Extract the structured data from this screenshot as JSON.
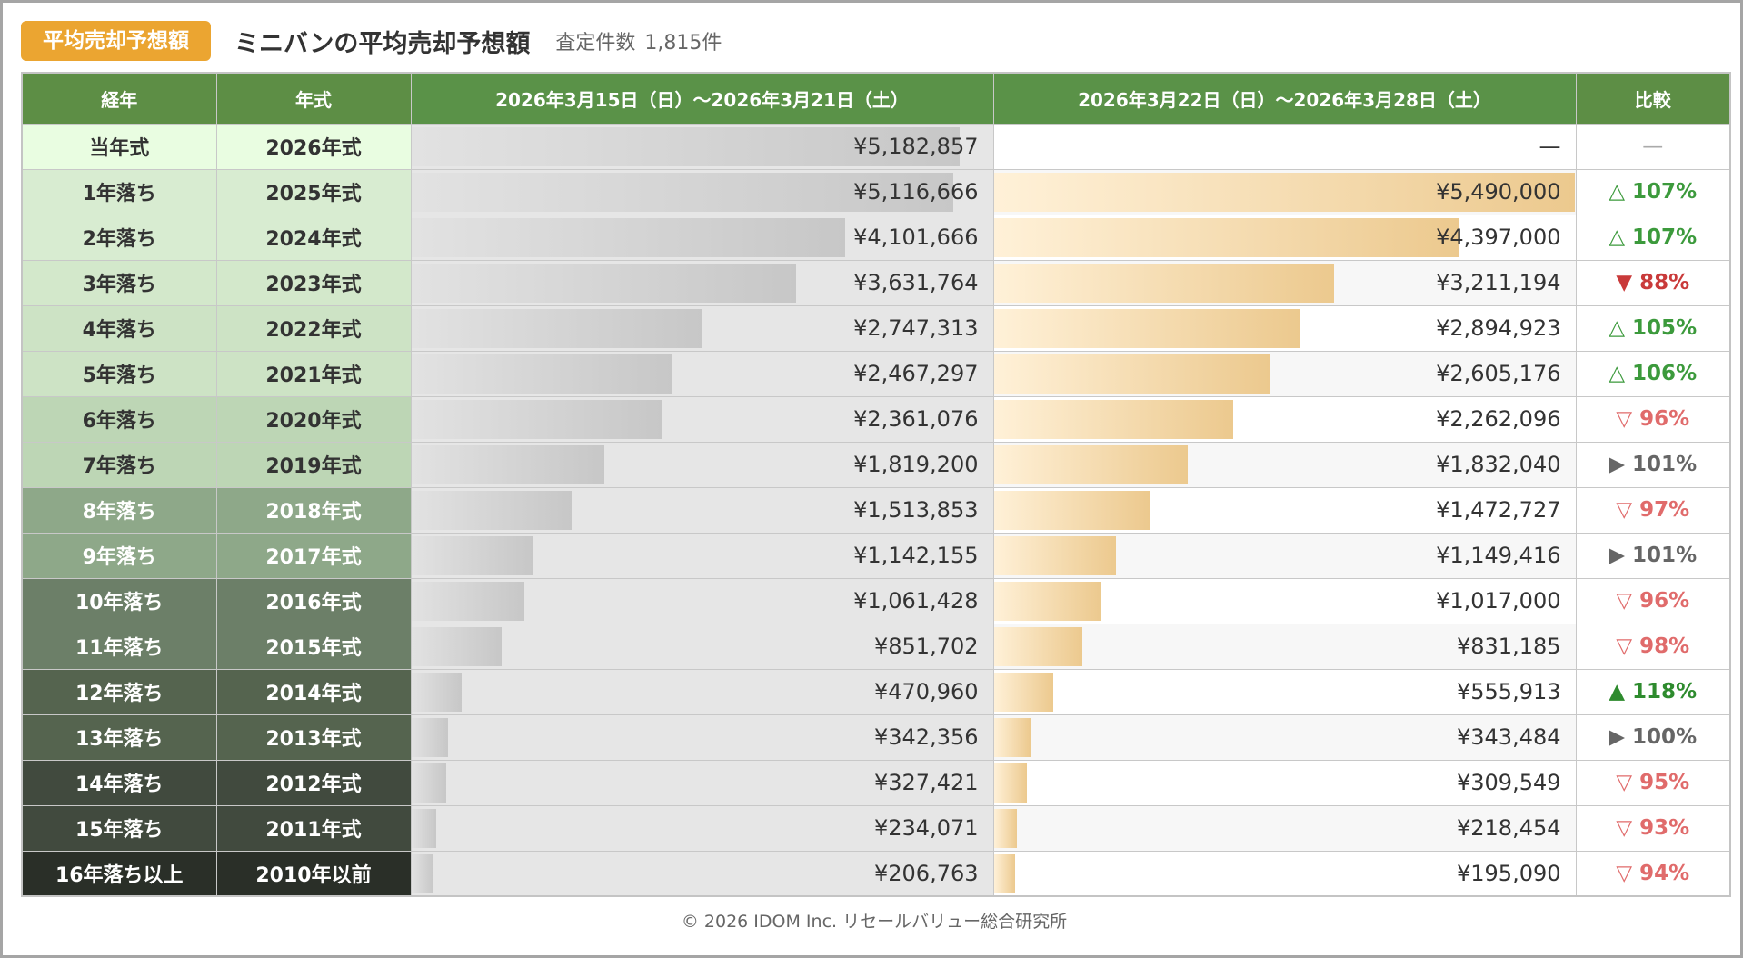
{
  "header": {
    "badge": "平均売却予想額",
    "title": "ミニバンの平均売却予想額",
    "count_label": "査定件数",
    "count_value": "1,815件"
  },
  "table": {
    "columns": {
      "age": "経年",
      "year": "年式",
      "period1": "2026年3月15日（日）〜2026年3月21日（土）",
      "period2": "2026年3月22日（日）〜2026年3月28日（土）",
      "compare": "比較"
    },
    "rows": [
      {
        "age": "当年式",
        "year": "2026年式",
        "v1_text": "¥5,182,857",
        "v2_text": "—",
        "cmp_text": "—",
        "cmp_color": "#aaaaaa",
        "age_bg": "#e9fde1",
        "age_fg": "#333333"
      },
      {
        "age": "1年落ち",
        "year": "2025年式",
        "v1_text": "¥5,116,666",
        "v2_text": "¥5,490,000",
        "cmp_text": "△ 107%",
        "cmp_color": "#3c9a3c",
        "age_bg": "#d8ecd1",
        "age_fg": "#333333"
      },
      {
        "age": "2年落ち",
        "year": "2024年式",
        "v1_text": "¥4,101,666",
        "v2_text": "¥4,397,000",
        "cmp_text": "△ 107%",
        "cmp_color": "#3c9a3c",
        "age_bg": "#d8ecd1",
        "age_fg": "#333333"
      },
      {
        "age": "3年落ち",
        "year": "2023年式",
        "v1_text": "¥3,631,764",
        "v2_text": "¥3,211,194",
        "cmp_text": "▼ 88%",
        "cmp_color": "#c93a3a",
        "age_bg": "#d3e8cb",
        "age_fg": "#333333"
      },
      {
        "age": "4年落ち",
        "year": "2022年式",
        "v1_text": "¥2,747,313",
        "v2_text": "¥2,894,923",
        "cmp_text": "△ 105%",
        "cmp_color": "#3c9a3c",
        "age_bg": "#cde3c5",
        "age_fg": "#333333"
      },
      {
        "age": "5年落ち",
        "year": "2021年式",
        "v1_text": "¥2,467,297",
        "v2_text": "¥2,605,176",
        "cmp_text": "△ 106%",
        "cmp_color": "#3c9a3c",
        "age_bg": "#cde3c5",
        "age_fg": "#333333"
      },
      {
        "age": "6年落ち",
        "year": "2020年式",
        "v1_text": "¥2,361,076",
        "v2_text": "¥2,262,096",
        "cmp_text": "▽ 96%",
        "cmp_color": "#e06b6b",
        "age_bg": "#bdd6b5",
        "age_fg": "#333333"
      },
      {
        "age": "7年落ち",
        "year": "2019年式",
        "v1_text": "¥1,819,200",
        "v2_text": "¥1,832,040",
        "cmp_text": "▶ 101%",
        "cmp_color": "#666666",
        "age_bg": "#bdd6b5",
        "age_fg": "#333333"
      },
      {
        "age": "8年落ち",
        "year": "2018年式",
        "v1_text": "¥1,513,853",
        "v2_text": "¥1,472,727",
        "cmp_text": "▽ 97%",
        "cmp_color": "#e06b6b",
        "age_bg": "#8ea889",
        "age_fg": "#ffffff"
      },
      {
        "age": "9年落ち",
        "year": "2017年式",
        "v1_text": "¥1,142,155",
        "v2_text": "¥1,149,416",
        "cmp_text": "▶ 101%",
        "cmp_color": "#666666",
        "age_bg": "#8ea889",
        "age_fg": "#ffffff"
      },
      {
        "age": "10年落ち",
        "year": "2016年式",
        "v1_text": "¥1,061,428",
        "v2_text": "¥1,017,000",
        "cmp_text": "▽ 96%",
        "cmp_color": "#e06b6b",
        "age_bg": "#6c7f68",
        "age_fg": "#ffffff"
      },
      {
        "age": "11年落ち",
        "year": "2015年式",
        "v1_text": "¥851,702",
        "v2_text": "¥831,185",
        "cmp_text": "▽ 98%",
        "cmp_color": "#e06b6b",
        "age_bg": "#6c7f68",
        "age_fg": "#ffffff"
      },
      {
        "age": "12年落ち",
        "year": "2014年式",
        "v1_text": "¥470,960",
        "v2_text": "¥555,913",
        "cmp_text": "▲ 118%",
        "cmp_color": "#2e8b2e",
        "age_bg": "#55644f",
        "age_fg": "#ffffff"
      },
      {
        "age": "13年落ち",
        "year": "2013年式",
        "v1_text": "¥342,356",
        "v2_text": "¥343,484",
        "cmp_text": "▶ 100%",
        "cmp_color": "#666666",
        "age_bg": "#55644f",
        "age_fg": "#ffffff"
      },
      {
        "age": "14年落ち",
        "year": "2012年式",
        "v1_text": "¥327,421",
        "v2_text": "¥309,549",
        "cmp_text": "▽ 95%",
        "cmp_color": "#e06b6b",
        "age_bg": "#414a3e",
        "age_fg": "#ffffff"
      },
      {
        "age": "15年落ち",
        "year": "2011年式",
        "v1_text": "¥234,071",
        "v2_text": "¥218,454",
        "cmp_text": "▽ 93%",
        "cmp_color": "#e06b6b",
        "age_bg": "#414a3e",
        "age_fg": "#ffffff"
      },
      {
        "age": "16年落ち以上",
        "year": "2010年以前",
        "v1_text": "¥206,763",
        "v2_text": "¥195,090",
        "cmp_text": "▽ 94%",
        "cmp_color": "#e06b6b",
        "age_bg": "#2a2f28",
        "age_fg": "#ffffff"
      }
    ]
  },
  "chart_data": {
    "type": "bar",
    "categories": [
      "当年式",
      "1年落ち",
      "2年落ち",
      "3年落ち",
      "4年落ち",
      "5年落ち",
      "6年落ち",
      "7年落ち",
      "8年落ち",
      "9年落ち",
      "10年落ち",
      "11年落ち",
      "12年落ち",
      "13年落ち",
      "14年落ち",
      "15年落ち",
      "16年落ち以上"
    ],
    "orientation": "horizontal",
    "x_max": 5490000,
    "series": [
      {
        "name": "2026年3月15日（日）〜2026年3月21日（土）",
        "values": [
          5182857,
          5116666,
          4101666,
          3631764,
          2747313,
          2467297,
          2361076,
          1819200,
          1513853,
          1142155,
          1061428,
          851702,
          470960,
          342356,
          327421,
          234071,
          206763
        ]
      },
      {
        "name": "2026年3月22日（日）〜2026年3月28日（土）",
        "values": [
          null,
          5490000,
          4397000,
          3211194,
          2894923,
          2605176,
          2262096,
          1832040,
          1472727,
          1149416,
          1017000,
          831185,
          555913,
          343484,
          309549,
          218454,
          195090
        ]
      }
    ],
    "compare_percent": [
      null,
      107,
      107,
      88,
      105,
      106,
      96,
      101,
      97,
      101,
      96,
      98,
      118,
      100,
      95,
      93,
      94
    ],
    "colors": {
      "series1": "#c9c9c9",
      "series2": "#ecc98e",
      "header": "#5a9248"
    }
  },
  "footer": "© 2026 IDOM Inc. リセールバリュー総合研究所"
}
